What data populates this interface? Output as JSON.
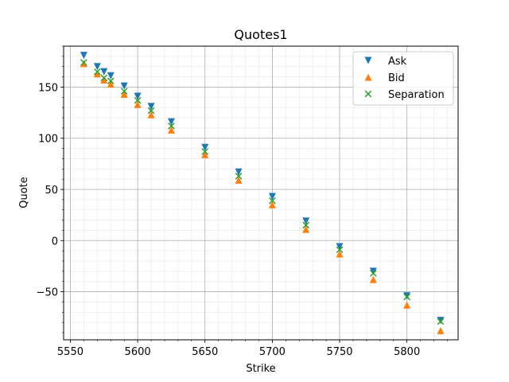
{
  "chart_data": {
    "type": "scatter",
    "title": "Quotes1",
    "xlabel": "Strike",
    "ylabel": "Quote",
    "xlim": [
      5545,
      5838
    ],
    "ylim": [
      -97,
      190
    ],
    "x_major_ticks": [
      5550,
      5600,
      5650,
      5700,
      5750,
      5800
    ],
    "x_tick_labels": [
      "5550",
      "5600",
      "5650",
      "5700",
      "5750",
      "5800"
    ],
    "y_major_ticks": [
      -50,
      0,
      50,
      100,
      150
    ],
    "y_tick_labels": [
      "−50",
      "0",
      "50",
      "100",
      "150"
    ],
    "x_minor_step": 10,
    "y_minor_step": 10,
    "grid": true,
    "legend_position": "top-right",
    "series": [
      {
        "name": "Ask",
        "marker": "triangle-down",
        "color": "#1f77b4",
        "x": [
          5560,
          5570,
          5575,
          5580,
          5590,
          5600,
          5610,
          5625,
          5650,
          5675,
          5700,
          5725,
          5750,
          5775,
          5800,
          5825
        ],
        "y": [
          181,
          170,
          165,
          161,
          151,
          141,
          131,
          116,
          91,
          67,
          43,
          19,
          -6,
          -30,
          -54,
          -78
        ]
      },
      {
        "name": "Bid",
        "marker": "triangle-up",
        "color": "#ff7f0e",
        "x": [
          5560,
          5570,
          5575,
          5580,
          5590,
          5600,
          5610,
          5625,
          5650,
          5675,
          5700,
          5725,
          5750,
          5775,
          5800,
          5825
        ],
        "y": [
          173,
          163,
          157,
          153,
          143,
          133,
          123,
          108,
          84,
          59,
          35,
          11,
          -13,
          -38,
          -63,
          -88
        ]
      },
      {
        "name": "Separation",
        "marker": "x",
        "color": "#2ca02c",
        "x": [
          5560,
          5570,
          5575,
          5580,
          5590,
          5600,
          5610,
          5625,
          5650,
          5675,
          5700,
          5725,
          5750,
          5775,
          5800,
          5825
        ],
        "y": [
          174,
          165,
          159,
          156,
          146,
          137,
          127,
          112,
          87,
          63,
          39,
          15,
          -9,
          -32,
          -55,
          -79
        ]
      }
    ]
  }
}
